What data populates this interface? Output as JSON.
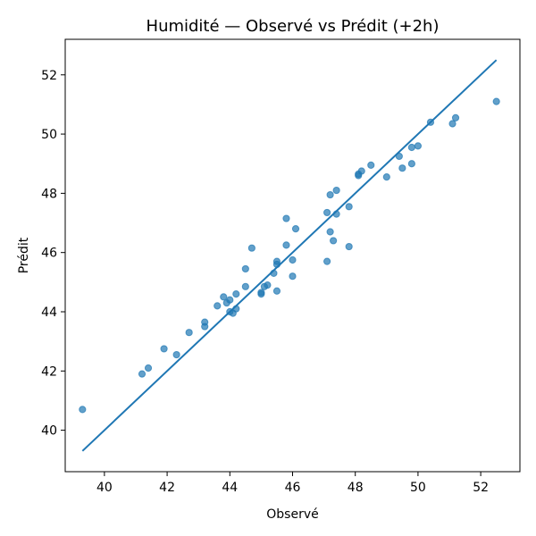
{
  "chart_data": {
    "type": "scatter",
    "title": "Humidité — Observé vs Prédit (+2h)",
    "xlabel": "Observé",
    "ylabel": "Prédit",
    "xlim": [
      38.75,
      53.25
    ],
    "ylim": [
      38.6,
      53.2
    ],
    "xticks": [
      40,
      42,
      44,
      46,
      48,
      50,
      52
    ],
    "yticks": [
      40,
      42,
      44,
      46,
      48,
      50,
      52
    ],
    "grid": false,
    "colors": {
      "points": "#1f77b4",
      "line": "#1f77b4",
      "axes": "#000000"
    },
    "series": [
      {
        "kind": "points",
        "x": [
          39.3,
          41.2,
          41.4,
          41.9,
          42.3,
          42.7,
          43.2,
          43.2,
          43.6,
          43.8,
          43.9,
          44.0,
          44.0,
          44.1,
          44.2,
          44.2,
          44.5,
          44.5,
          44.7,
          45.0,
          45.0,
          45.1,
          45.2,
          45.4,
          45.5,
          45.5,
          45.5,
          45.8,
          45.8,
          46.0,
          46.0,
          46.1,
          47.1,
          47.1,
          47.2,
          47.2,
          47.3,
          47.4,
          47.4,
          47.8,
          47.8,
          48.1,
          48.1,
          48.2,
          48.5,
          49.0,
          49.4,
          49.5,
          49.8,
          49.8,
          50.0,
          50.4,
          51.1,
          51.2,
          52.5
        ],
        "y": [
          40.7,
          41.9,
          42.1,
          42.75,
          42.55,
          43.3,
          43.5,
          43.65,
          44.2,
          44.5,
          44.3,
          44.4,
          44.0,
          43.95,
          44.1,
          44.6,
          44.85,
          45.45,
          46.15,
          44.6,
          44.65,
          44.85,
          44.9,
          45.3,
          45.6,
          45.7,
          44.7,
          46.25,
          47.15,
          45.2,
          45.75,
          46.8,
          45.7,
          47.35,
          47.95,
          46.7,
          46.4,
          47.3,
          48.1,
          47.55,
          46.2,
          48.6,
          48.65,
          48.75,
          48.95,
          48.55,
          49.25,
          48.85,
          49.55,
          49.0,
          49.6,
          50.4,
          50.35,
          50.55,
          51.1
        ]
      },
      {
        "kind": "line",
        "x": [
          39.3,
          52.5
        ],
        "y": [
          39.3,
          52.5
        ]
      }
    ]
  }
}
